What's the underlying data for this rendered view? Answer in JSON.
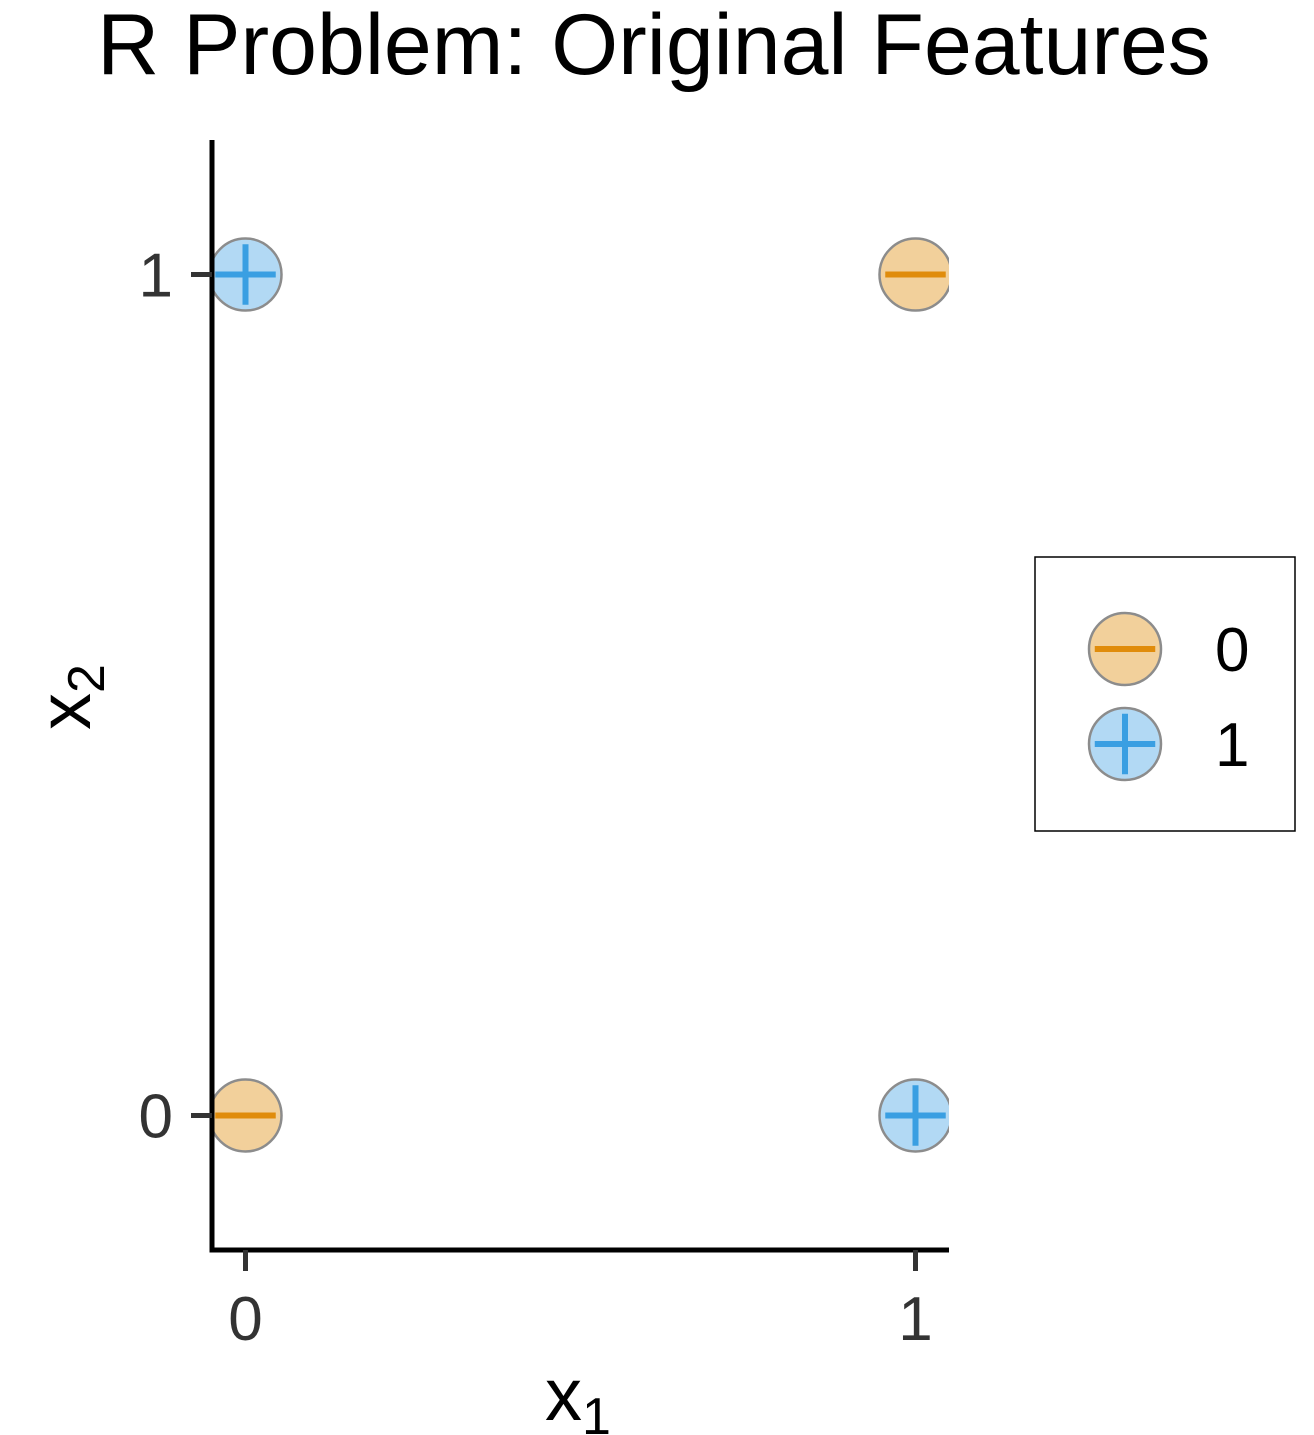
{
  "chart_data": {
    "type": "scatter",
    "title": "R Problem: Original Features",
    "xlabel": {
      "base": "x",
      "sub": "1"
    },
    "ylabel": {
      "base": "x",
      "sub": "2"
    },
    "xlim": [
      -0.05,
      1.05
    ],
    "ylim": [
      -0.16,
      1.16
    ],
    "x_ticks": [
      0,
      1
    ],
    "y_ticks": [
      0,
      1
    ],
    "x_tick_labels": [
      "0",
      "1"
    ],
    "y_tick_labels": [
      "0",
      "1"
    ],
    "grid": false,
    "legend_position": "right",
    "classes": [
      {
        "label": "0",
        "symbol": "minus",
        "fill": "#f2d09b",
        "stroke_color": "#e08c0c"
      },
      {
        "label": "1",
        "symbol": "plus",
        "fill": "#b2d9f4",
        "stroke_color": "#3a9fe2"
      }
    ],
    "points": [
      {
        "x": 0,
        "y": 0,
        "class": "0"
      },
      {
        "x": 0,
        "y": 1,
        "class": "1"
      },
      {
        "x": 1,
        "y": 0,
        "class": "1"
      },
      {
        "x": 1,
        "y": 1,
        "class": "0"
      }
    ],
    "outline_color": "#8c8c8c"
  }
}
